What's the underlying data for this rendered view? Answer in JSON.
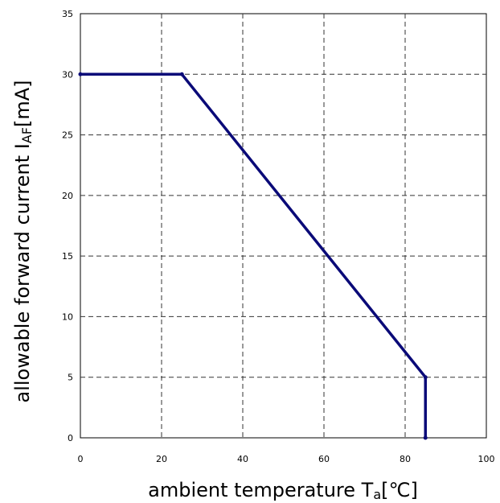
{
  "chart_data": {
    "type": "line",
    "xlabel": {
      "text": "ambient temperature T",
      "sub": "a",
      "unit": "[℃]"
    },
    "ylabel": {
      "text": "allowable forward current I",
      "sub": "AF",
      "unit": "[mA]"
    },
    "xlim": [
      0,
      100
    ],
    "ylim": [
      0,
      35
    ],
    "xticks": [
      "0",
      "20",
      "40",
      "60",
      "80",
      "100"
    ],
    "yticks": [
      "0",
      "5",
      "10",
      "15",
      "20",
      "25",
      "30",
      "35"
    ],
    "grid": true,
    "line_color": "#0a0a78",
    "series": [
      {
        "points": [
          [
            0,
            30
          ],
          [
            25,
            30
          ],
          [
            85,
            5
          ],
          [
            85,
            0
          ]
        ]
      }
    ]
  }
}
